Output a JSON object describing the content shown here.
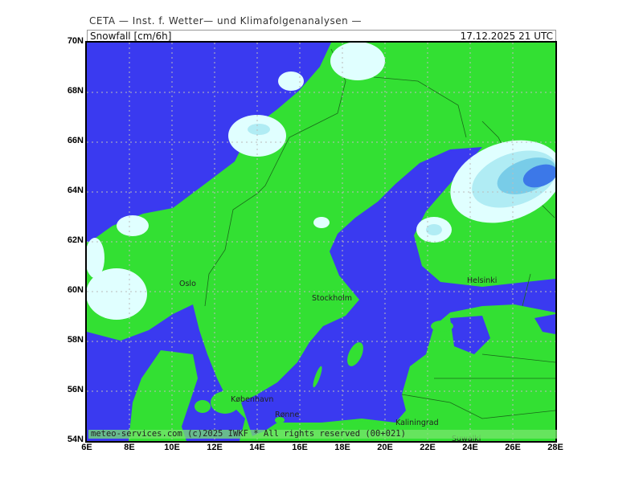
{
  "header": {
    "title": "CETA — Inst. f. Wetter— und Klimafolgenanalysen —",
    "variable": "Snowfall [cm/6h]",
    "valid_time": "17.12.2025  21  UTC"
  },
  "footer": {
    "copyright": "meteo-services.com (c)2025 IWKF * All rights reserved (00+021)"
  },
  "axes": {
    "lon_labels": [
      "6E",
      "8E",
      "10E",
      "12E",
      "14E",
      "16E",
      "18E",
      "20E",
      "22E",
      "24E",
      "26E",
      "28E"
    ],
    "lat_labels": [
      "70N",
      "68N",
      "66N",
      "64N",
      "62N",
      "60N",
      "58N",
      "56N",
      "54N"
    ]
  },
  "cities": [
    {
      "name": "Oslo"
    },
    {
      "name": "Stockholm"
    },
    {
      "name": "Helsinki"
    },
    {
      "name": "København"
    },
    {
      "name": "Rønne"
    },
    {
      "name": "Kaliningrad"
    },
    {
      "name": "Suwalki"
    }
  ],
  "colors": {
    "land": "#33e033",
    "sea": "#3a3af0",
    "snow_trace": "#e0ffff",
    "snow_light": "#b0ecf4",
    "snow_mid": "#78cce8",
    "snow_heavy": "#3c78e8"
  }
}
